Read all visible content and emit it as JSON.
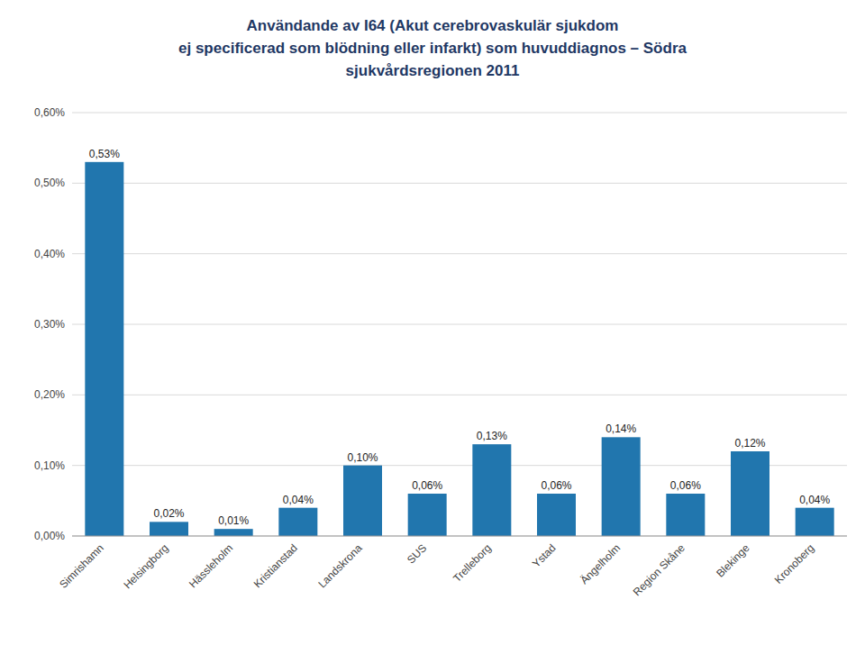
{
  "chart_data": {
    "type": "bar",
    "title": "Användande av I64 (Akut cerebrovaskulär sjukdom\nej specificerad som blödning eller infarkt) som huvuddiagnos – Södra\nsjukvårdsregionen 2011",
    "categories": [
      "Simrishamn",
      "Helsingborg",
      "Hässleholm",
      "Kristianstad",
      "Landskrona",
      "SUS",
      "Trelleborg",
      "Ystad",
      "Ängelholm",
      "Region Skåne",
      "Blekinge",
      "Kronoberg"
    ],
    "values": [
      0.0053,
      0.0002,
      0.0001,
      0.0004,
      0.001,
      0.0006,
      0.0013,
      0.0006,
      0.0014,
      0.0006,
      0.0012,
      0.0004
    ],
    "value_labels": [
      "0,53%",
      "0,02%",
      "0,01%",
      "0,04%",
      "0,10%",
      "0,06%",
      "0,13%",
      "0,06%",
      "0,14%",
      "0,06%",
      "0,12%",
      "0,04%"
    ],
    "data_labels": true,
    "color": "#2176AE",
    "ylim": [
      0,
      0.006
    ],
    "yticks": [
      {
        "value": 0.0,
        "label": "0,00%"
      },
      {
        "value": 0.001,
        "label": "0,10%"
      },
      {
        "value": 0.002,
        "label": "0,20%"
      },
      {
        "value": 0.003,
        "label": "0,30%"
      },
      {
        "value": 0.004,
        "label": "0,40%"
      },
      {
        "value": 0.005,
        "label": "0,50%"
      },
      {
        "value": 0.006,
        "label": "0,60%"
      }
    ],
    "grid": true
  }
}
